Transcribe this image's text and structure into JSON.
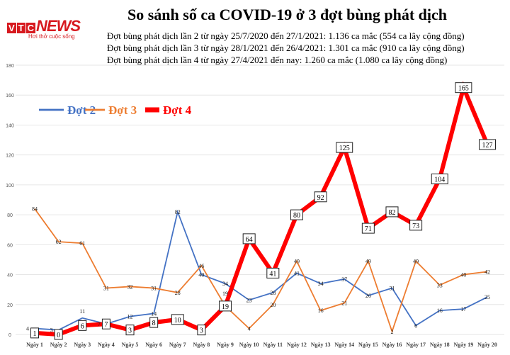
{
  "logo": {
    "brand": "VTC NEWS",
    "slogan": "Hơi thở cuộc sống"
  },
  "chart_data": {
    "type": "line",
    "title": "So sánh số ca COVID-19 ở 3 đợt bùng phát dịch",
    "subtitles": [
      "Đợt bùng  phát dịch lần 2 từ ngày 25/7/2020 đến 27/1/2021: 1.136 ca mắc (554 ca lây cộng đồng)",
      "Đợt bùng  phát dịch lần 3 từ ngày 28/1/2021 đến 26/4/2021: 1.301 ca mắc (910 ca lây cộng đồng)",
      "Đợt bùng  phát dịch lần 4 từ ngày 27/4/2021 đến nay: 1.260 ca mắc (1.080 ca lây cộng đồng)"
    ],
    "categories": [
      "Ngày 1",
      "Ngày 2",
      "Ngày 3",
      "Ngày 4",
      "Ngày 5",
      "Ngày 6",
      "Ngày 7",
      "Ngày 8",
      "Ngày 9",
      "Ngày 10",
      "Ngày 11",
      "Ngày 12",
      "Ngày 13",
      "Ngày 14",
      "Ngày 15",
      "Ngày 16",
      "Ngày 17",
      "Ngày 18",
      "Ngày 19",
      "Ngày 20"
    ],
    "yticks": [
      0,
      20,
      40,
      60,
      80,
      100,
      120,
      140,
      160,
      180
    ],
    "ylim": [
      0,
      180
    ],
    "grid": true,
    "legend_position": "top-left",
    "series": [
      {
        "name": "Đợt 2",
        "color": "#4472c4",
        "values": [
          4,
          3,
          11,
          7,
          12,
          14,
          82,
          40,
          34,
          23,
          28,
          41,
          34,
          37,
          26,
          31,
          6,
          16,
          17,
          25
        ]
      },
      {
        "name": "Đợt 3",
        "color": "#ed7d31",
        "values": [
          84,
          62,
          61,
          31,
          32,
          31,
          28,
          46,
          19,
          4,
          20,
          49,
          16,
          21,
          49,
          2,
          49,
          33,
          40,
          42
        ]
      },
      {
        "name": "Đợt 4",
        "color": "#ff0000",
        "values": [
          1,
          0,
          6,
          7,
          3,
          8,
          10,
          3,
          19,
          64,
          41,
          80,
          92,
          125,
          71,
          82,
          73,
          104,
          165,
          127
        ]
      }
    ]
  }
}
